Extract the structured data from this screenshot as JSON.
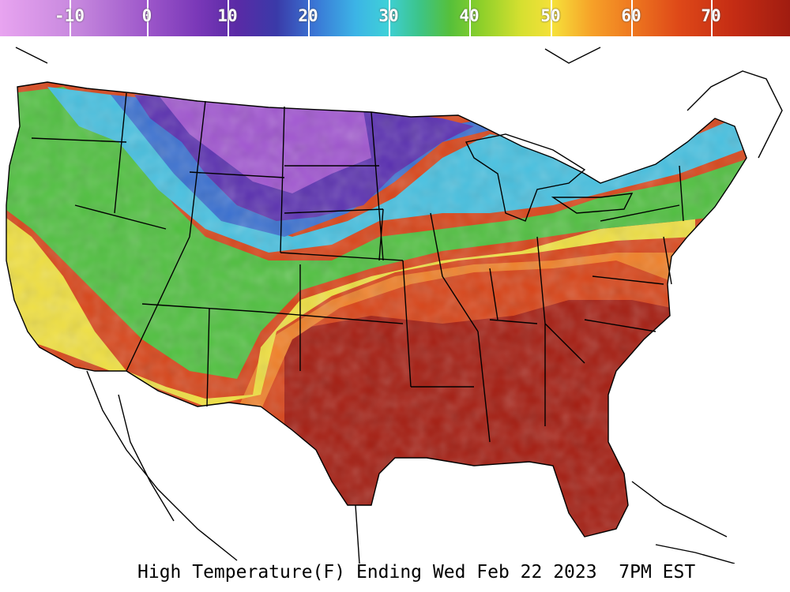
{
  "legend": {
    "unit": "F",
    "ticks": [
      {
        "label": "-10",
        "pos": 0.088
      },
      {
        "label": "0",
        "pos": 0.186
      },
      {
        "label": "10",
        "pos": 0.288
      },
      {
        "label": "20",
        "pos": 0.39
      },
      {
        "label": "30",
        "pos": 0.492
      },
      {
        "label": "40",
        "pos": 0.594
      },
      {
        "label": "50",
        "pos": 0.697
      },
      {
        "label": "60",
        "pos": 0.799
      },
      {
        "label": "70",
        "pos": 0.9
      }
    ]
  },
  "caption": "High Temperature(F) Ending Wed Feb 22 2023  7PM EST",
  "colors": {
    "very_cold": "#a055d0",
    "cold": "#5a30b0",
    "cool": "#3a70d0",
    "mild_cool": "#46c0e0",
    "mild": "#50c040",
    "warm": "#f0e040",
    "warmer": "#f08028",
    "hot": "#d84418",
    "hottest": "#a41c10"
  }
}
